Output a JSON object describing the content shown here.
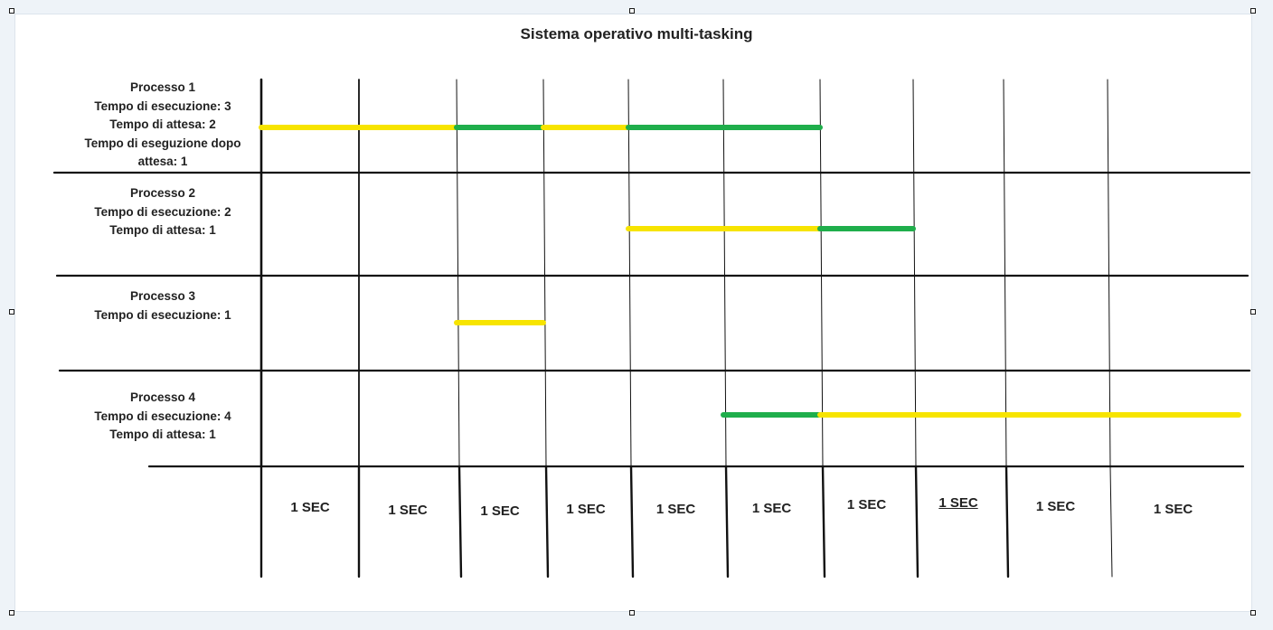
{
  "title": "Sistema operativo multi-tasking",
  "colors": {
    "execution": "#f7e400",
    "waiting": "#1fae4b",
    "grid": "#111111"
  },
  "processes": [
    {
      "lines": [
        "Processo 1",
        "Tempo di esecuzione: 3",
        "Tempo di attesa: 2",
        "Tempo di eseguzione dopo",
        "attesa: 1"
      ]
    },
    {
      "lines": [
        "Processo 2",
        "Tempo di esecuzione: 2",
        "Tempo di attesa: 1"
      ]
    },
    {
      "lines": [
        "Processo 3",
        "Tempo di esecuzione: 1"
      ]
    },
    {
      "lines": [
        "Processo 4",
        "Tempo di esecuzione: 4",
        "Tempo di attesa: 1"
      ]
    }
  ],
  "time_slots": [
    "1 SEC",
    "1 SEC",
    "1 SEC",
    "1 SEC",
    "1 SEC",
    "1 SEC",
    "1 SEC",
    "1 SEC",
    "1 SEC",
    "1 SEC"
  ],
  "chart_data": {
    "type": "gantt",
    "title": "Sistema operativo multi-tasking",
    "slot_unit": "1 SEC",
    "slots": 10,
    "legend": "none",
    "bars": [
      {
        "process": 1,
        "start": 0,
        "end": 2,
        "state": "execution"
      },
      {
        "process": 1,
        "start": 2,
        "end": 3,
        "state": "waiting"
      },
      {
        "process": 1,
        "start": 3,
        "end": 4,
        "state": "execution"
      },
      {
        "process": 1,
        "start": 4,
        "end": 6,
        "state": "waiting"
      },
      {
        "process": 2,
        "start": 4,
        "end": 6,
        "state": "execution"
      },
      {
        "process": 2,
        "start": 6,
        "end": 7,
        "state": "waiting"
      },
      {
        "process": 3,
        "start": 2,
        "end": 3,
        "state": "execution"
      },
      {
        "process": 4,
        "start": 5,
        "end": 6,
        "state": "waiting"
      },
      {
        "process": 4,
        "start": 6,
        "end": 10,
        "state": "execution"
      }
    ]
  }
}
